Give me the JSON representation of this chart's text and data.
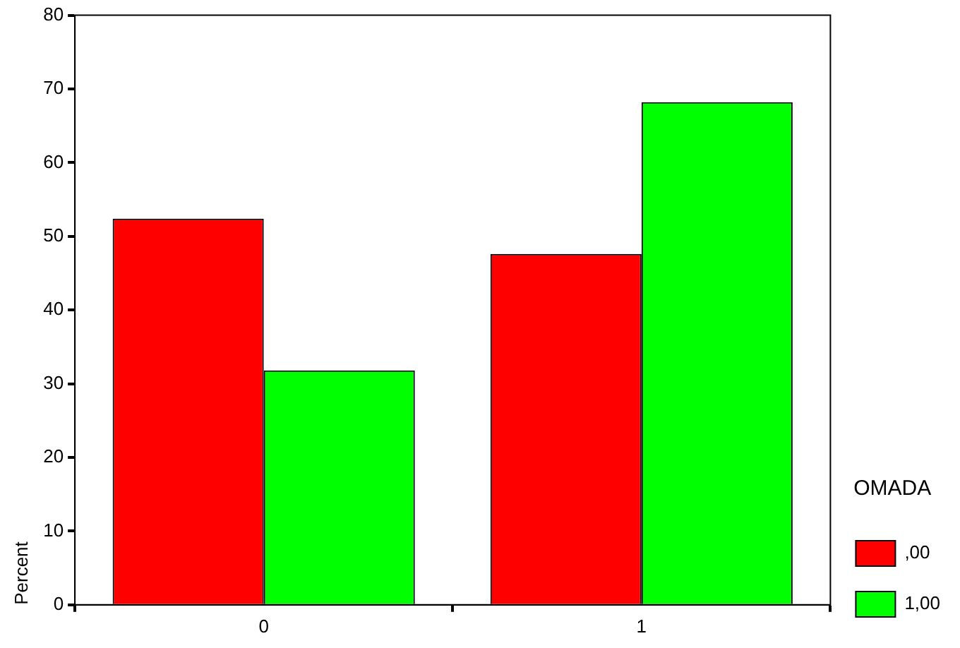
{
  "chart_data": {
    "type": "bar",
    "ylabel": "Percent",
    "legend_title": "OMADA",
    "categories": [
      "0",
      "1"
    ],
    "series": [
      {
        "name": ",00",
        "color": "#ff0000",
        "values": [
          52.4,
          47.6
        ]
      },
      {
        "name": "1,00",
        "color": "#00ff00",
        "values": [
          31.8,
          68.2
        ]
      }
    ],
    "ylim": [
      0,
      80
    ],
    "yticks": [
      0,
      10,
      20,
      30,
      40,
      50,
      60,
      70,
      80
    ],
    "grid": false,
    "legend": "right"
  }
}
